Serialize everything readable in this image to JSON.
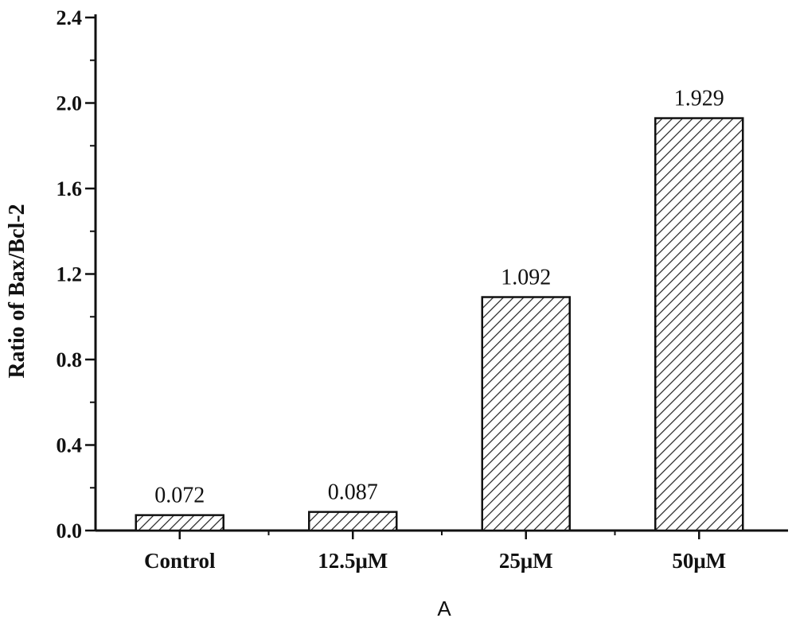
{
  "chart_data": {
    "type": "bar",
    "categories": [
      "Control",
      "12.5μM",
      "25μM",
      "50μM"
    ],
    "values": [
      0.072,
      0.087,
      1.092,
      1.929
    ],
    "data_labels": [
      "0.072",
      "0.087",
      "1.092",
      "1.929"
    ],
    "title": "",
    "xlabel": "A",
    "ylabel": "Ratio of Bax/Bcl-2",
    "ylim": [
      0,
      2.4
    ],
    "yticks": [
      0.0,
      0.4,
      0.8,
      1.2,
      1.6,
      2.0,
      2.4
    ],
    "ytick_labels": [
      "0.0",
      "0.4",
      "0.8",
      "1.2",
      "1.6",
      "2.0",
      "2.4"
    ],
    "y_minor_ticks": true,
    "grid": false,
    "legend": "none",
    "bar_fill": "diagonal hatch",
    "colors": {
      "bar_stroke": "#111111",
      "hatch": "#222222",
      "axis": "#111111",
      "background": "#ffffff"
    }
  }
}
